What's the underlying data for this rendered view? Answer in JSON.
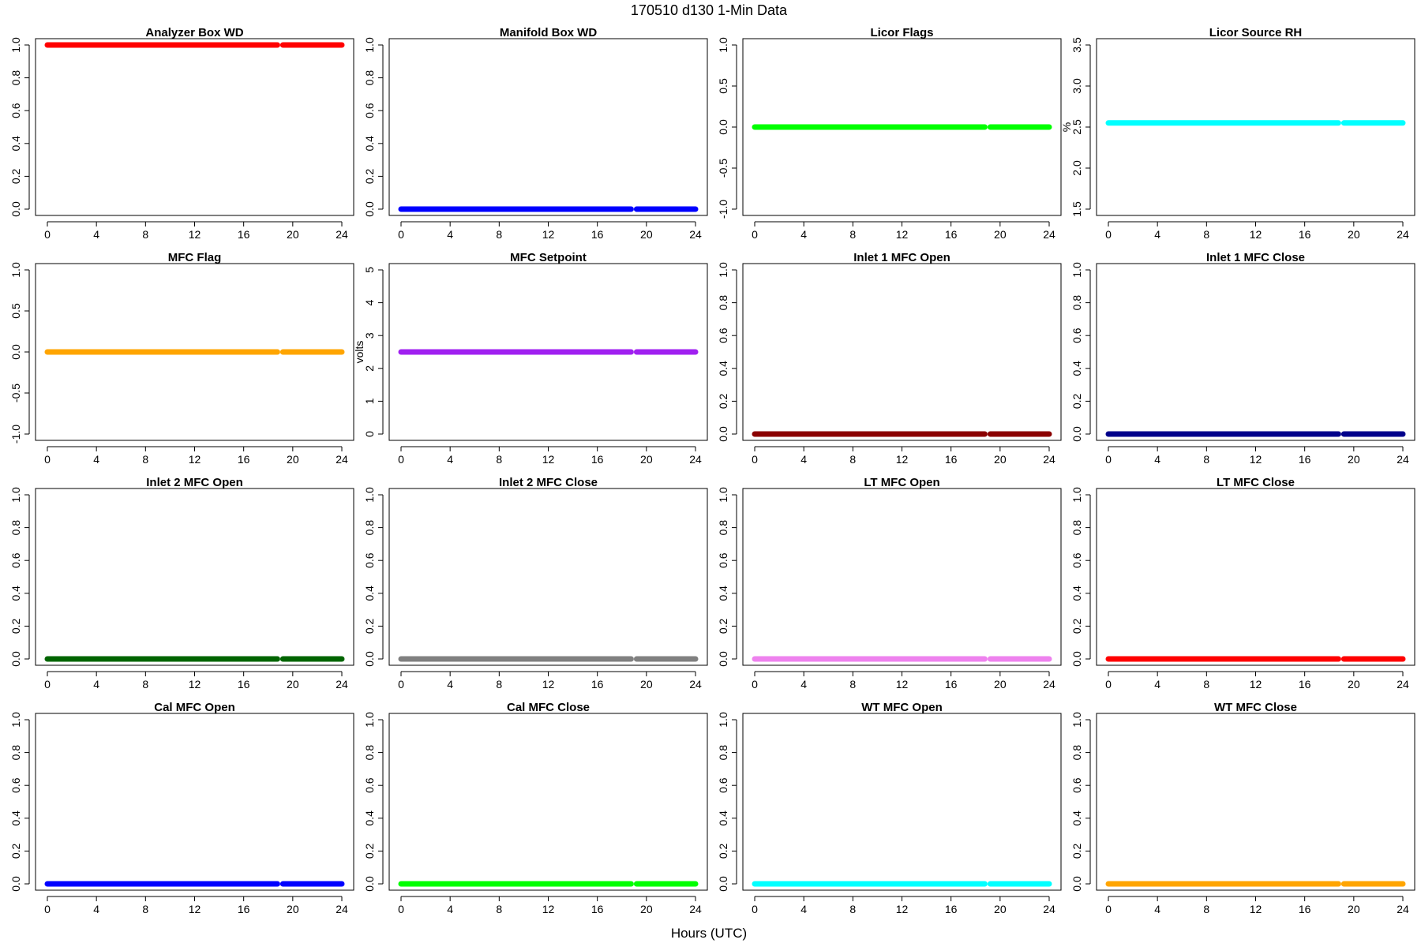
{
  "figure": {
    "title": "170510   d130   1-Min Data",
    "xlabel": "Hours (UTC)"
  },
  "chart_data": [
    {
      "type": "scatter",
      "title": "Analyzer Box WD",
      "ylabel": "",
      "color": "#ff0000",
      "xlim": [
        0,
        24
      ],
      "ylim": [
        0,
        1
      ],
      "xticks": [
        0,
        4,
        8,
        12,
        16,
        20,
        24
      ],
      "yticks": [
        0.0,
        0.2,
        0.4,
        0.6,
        0.8,
        1.0
      ],
      "ytick_labels": [
        "0.0",
        "0.2",
        "0.4",
        "0.6",
        "0.8",
        "1.0"
      ],
      "segments": [
        {
          "x": [
            0,
            18.75
          ],
          "y": 1.0
        },
        {
          "x": [
            19.2,
            24
          ],
          "y": 1.0
        }
      ]
    },
    {
      "type": "scatter",
      "title": "Manifold Box WD",
      "ylabel": "",
      "color": "#0000ff",
      "xlim": [
        0,
        24
      ],
      "ylim": [
        0,
        1
      ],
      "xticks": [
        0,
        4,
        8,
        12,
        16,
        20,
        24
      ],
      "yticks": [
        0.0,
        0.2,
        0.4,
        0.6,
        0.8,
        1.0
      ],
      "ytick_labels": [
        "0.0",
        "0.2",
        "0.4",
        "0.6",
        "0.8",
        "1.0"
      ],
      "segments": [
        {
          "x": [
            0,
            18.75
          ],
          "y": 0.0
        },
        {
          "x": [
            19.2,
            24
          ],
          "y": 0.0
        }
      ]
    },
    {
      "type": "scatter",
      "title": "Licor Flags",
      "ylabel": "",
      "color": "#00ff00",
      "xlim": [
        0,
        24
      ],
      "ylim": [
        -1,
        1
      ],
      "xticks": [
        0,
        4,
        8,
        12,
        16,
        20,
        24
      ],
      "yticks": [
        -1.0,
        -0.5,
        0.0,
        0.5,
        1.0
      ],
      "ytick_labels": [
        "-1.0",
        "-0.5",
        "0.0",
        "0.5",
        "1.0"
      ],
      "segments": [
        {
          "x": [
            0,
            18.75
          ],
          "y": 0.0
        },
        {
          "x": [
            19.2,
            24
          ],
          "y": 0.0
        }
      ]
    },
    {
      "type": "scatter",
      "title": "Licor Source RH",
      "ylabel": "%",
      "color": "#00ffff",
      "xlim": [
        0,
        24
      ],
      "ylim": [
        1.5,
        3.5
      ],
      "xticks": [
        0,
        4,
        8,
        12,
        16,
        20,
        24
      ],
      "yticks": [
        1.5,
        2.0,
        2.5,
        3.0,
        3.5
      ],
      "ytick_labels": [
        "1.5",
        "2.0",
        "2.5",
        "3.0",
        "3.5"
      ],
      "segments": [
        {
          "x": [
            0,
            18.75
          ],
          "y": 2.55
        },
        {
          "x": [
            19.2,
            24
          ],
          "y": 2.55
        }
      ]
    },
    {
      "type": "scatter",
      "title": "MFC Flag",
      "ylabel": "",
      "color": "#ffa500",
      "xlim": [
        0,
        24
      ],
      "ylim": [
        -1,
        1
      ],
      "xticks": [
        0,
        4,
        8,
        12,
        16,
        20,
        24
      ],
      "yticks": [
        -1.0,
        -0.5,
        0.0,
        0.5,
        1.0
      ],
      "ytick_labels": [
        "-1.0",
        "-0.5",
        "0.0",
        "0.5",
        "1.0"
      ],
      "segments": [
        {
          "x": [
            0,
            18.75
          ],
          "y": 0.0
        },
        {
          "x": [
            19.2,
            24
          ],
          "y": 0.0
        }
      ]
    },
    {
      "type": "scatter",
      "title": "MFC Setpoint",
      "ylabel": "volts",
      "color": "#a020f0",
      "xlim": [
        0,
        24
      ],
      "ylim": [
        0,
        5
      ],
      "xticks": [
        0,
        4,
        8,
        12,
        16,
        20,
        24
      ],
      "yticks": [
        0,
        1,
        2,
        3,
        4,
        5
      ],
      "ytick_labels": [
        "0",
        "1",
        "2",
        "3",
        "4",
        "5"
      ],
      "segments": [
        {
          "x": [
            0,
            18.75
          ],
          "y": 2.5
        },
        {
          "x": [
            19.2,
            24
          ],
          "y": 2.5
        }
      ]
    },
    {
      "type": "scatter",
      "title": "Inlet 1 MFC Open",
      "ylabel": "",
      "color": "#8b0000",
      "xlim": [
        0,
        24
      ],
      "ylim": [
        0,
        1
      ],
      "xticks": [
        0,
        4,
        8,
        12,
        16,
        20,
        24
      ],
      "yticks": [
        0.0,
        0.2,
        0.4,
        0.6,
        0.8,
        1.0
      ],
      "ytick_labels": [
        "0.0",
        "0.2",
        "0.4",
        "0.6",
        "0.8",
        "1.0"
      ],
      "segments": [
        {
          "x": [
            0,
            18.75
          ],
          "y": 0.0
        },
        {
          "x": [
            19.2,
            24
          ],
          "y": 0.0
        }
      ]
    },
    {
      "type": "scatter",
      "title": "Inlet 1 MFC Close",
      "ylabel": "",
      "color": "#00008b",
      "xlim": [
        0,
        24
      ],
      "ylim": [
        0,
        1
      ],
      "xticks": [
        0,
        4,
        8,
        12,
        16,
        20,
        24
      ],
      "yticks": [
        0.0,
        0.2,
        0.4,
        0.6,
        0.8,
        1.0
      ],
      "ytick_labels": [
        "0.0",
        "0.2",
        "0.4",
        "0.6",
        "0.8",
        "1.0"
      ],
      "segments": [
        {
          "x": [
            0,
            18.75
          ],
          "y": 0.0
        },
        {
          "x": [
            19.2,
            24
          ],
          "y": 0.0
        }
      ]
    },
    {
      "type": "scatter",
      "title": "Inlet 2 MFC Open",
      "ylabel": "",
      "color": "#006400",
      "xlim": [
        0,
        24
      ],
      "ylim": [
        0,
        1
      ],
      "xticks": [
        0,
        4,
        8,
        12,
        16,
        20,
        24
      ],
      "yticks": [
        0.0,
        0.2,
        0.4,
        0.6,
        0.8,
        1.0
      ],
      "ytick_labels": [
        "0.0",
        "0.2",
        "0.4",
        "0.6",
        "0.8",
        "1.0"
      ],
      "segments": [
        {
          "x": [
            0,
            18.75
          ],
          "y": 0.0
        },
        {
          "x": [
            19.2,
            24
          ],
          "y": 0.0
        }
      ]
    },
    {
      "type": "scatter",
      "title": "Inlet 2 MFC Close",
      "ylabel": "",
      "color": "#808080",
      "xlim": [
        0,
        24
      ],
      "ylim": [
        0,
        1
      ],
      "xticks": [
        0,
        4,
        8,
        12,
        16,
        20,
        24
      ],
      "yticks": [
        0.0,
        0.2,
        0.4,
        0.6,
        0.8,
        1.0
      ],
      "ytick_labels": [
        "0.0",
        "0.2",
        "0.4",
        "0.6",
        "0.8",
        "1.0"
      ],
      "segments": [
        {
          "x": [
            0,
            18.75
          ],
          "y": 0.0
        },
        {
          "x": [
            19.2,
            24
          ],
          "y": 0.0
        }
      ]
    },
    {
      "type": "scatter",
      "title": "LT MFC Open",
      "ylabel": "",
      "color": "#ee82ee",
      "xlim": [
        0,
        24
      ],
      "ylim": [
        0,
        1
      ],
      "xticks": [
        0,
        4,
        8,
        12,
        16,
        20,
        24
      ],
      "yticks": [
        0.0,
        0.2,
        0.4,
        0.6,
        0.8,
        1.0
      ],
      "ytick_labels": [
        "0.0",
        "0.2",
        "0.4",
        "0.6",
        "0.8",
        "1.0"
      ],
      "segments": [
        {
          "x": [
            0,
            18.75
          ],
          "y": 0.0
        },
        {
          "x": [
            19.2,
            24
          ],
          "y": 0.0
        }
      ]
    },
    {
      "type": "scatter",
      "title": "LT MFC Close",
      "ylabel": "",
      "color": "#ff0000",
      "xlim": [
        0,
        24
      ],
      "ylim": [
        0,
        1
      ],
      "xticks": [
        0,
        4,
        8,
        12,
        16,
        20,
        24
      ],
      "yticks": [
        0.0,
        0.2,
        0.4,
        0.6,
        0.8,
        1.0
      ],
      "ytick_labels": [
        "0.0",
        "0.2",
        "0.4",
        "0.6",
        "0.8",
        "1.0"
      ],
      "segments": [
        {
          "x": [
            0,
            18.75
          ],
          "y": 0.0
        },
        {
          "x": [
            19.2,
            24
          ],
          "y": 0.0
        }
      ]
    },
    {
      "type": "scatter",
      "title": "Cal MFC Open",
      "ylabel": "",
      "color": "#0000ff",
      "xlim": [
        0,
        24
      ],
      "ylim": [
        0,
        1
      ],
      "xticks": [
        0,
        4,
        8,
        12,
        16,
        20,
        24
      ],
      "yticks": [
        0.0,
        0.2,
        0.4,
        0.6,
        0.8,
        1.0
      ],
      "ytick_labels": [
        "0.0",
        "0.2",
        "0.4",
        "0.6",
        "0.8",
        "1.0"
      ],
      "segments": [
        {
          "x": [
            0,
            18.75
          ],
          "y": 0.0
        },
        {
          "x": [
            19.2,
            24
          ],
          "y": 0.0
        }
      ]
    },
    {
      "type": "scatter",
      "title": "Cal MFC Close",
      "ylabel": "",
      "color": "#00ff00",
      "xlim": [
        0,
        24
      ],
      "ylim": [
        0,
        1
      ],
      "xticks": [
        0,
        4,
        8,
        12,
        16,
        20,
        24
      ],
      "yticks": [
        0.0,
        0.2,
        0.4,
        0.6,
        0.8,
        1.0
      ],
      "ytick_labels": [
        "0.0",
        "0.2",
        "0.4",
        "0.6",
        "0.8",
        "1.0"
      ],
      "segments": [
        {
          "x": [
            0,
            18.75
          ],
          "y": 0.0
        },
        {
          "x": [
            19.2,
            24
          ],
          "y": 0.0
        }
      ]
    },
    {
      "type": "scatter",
      "title": "WT MFC Open",
      "ylabel": "",
      "color": "#00ffff",
      "xlim": [
        0,
        24
      ],
      "ylim": [
        0,
        1
      ],
      "xticks": [
        0,
        4,
        8,
        12,
        16,
        20,
        24
      ],
      "yticks": [
        0.0,
        0.2,
        0.4,
        0.6,
        0.8,
        1.0
      ],
      "ytick_labels": [
        "0.0",
        "0.2",
        "0.4",
        "0.6",
        "0.8",
        "1.0"
      ],
      "segments": [
        {
          "x": [
            0,
            18.75
          ],
          "y": 0.0
        },
        {
          "x": [
            19.2,
            24
          ],
          "y": 0.0
        }
      ]
    },
    {
      "type": "scatter",
      "title": "WT MFC Close",
      "ylabel": "",
      "color": "#ffa500",
      "xlim": [
        0,
        24
      ],
      "ylim": [
        0,
        1
      ],
      "xticks": [
        0,
        4,
        8,
        12,
        16,
        20,
        24
      ],
      "yticks": [
        0.0,
        0.2,
        0.4,
        0.6,
        0.8,
        1.0
      ],
      "ytick_labels": [
        "0.0",
        "0.2",
        "0.4",
        "0.6",
        "0.8",
        "1.0"
      ],
      "segments": [
        {
          "x": [
            0,
            18.75
          ],
          "y": 0.0
        },
        {
          "x": [
            19.2,
            24
          ],
          "y": 0.0
        }
      ]
    }
  ]
}
